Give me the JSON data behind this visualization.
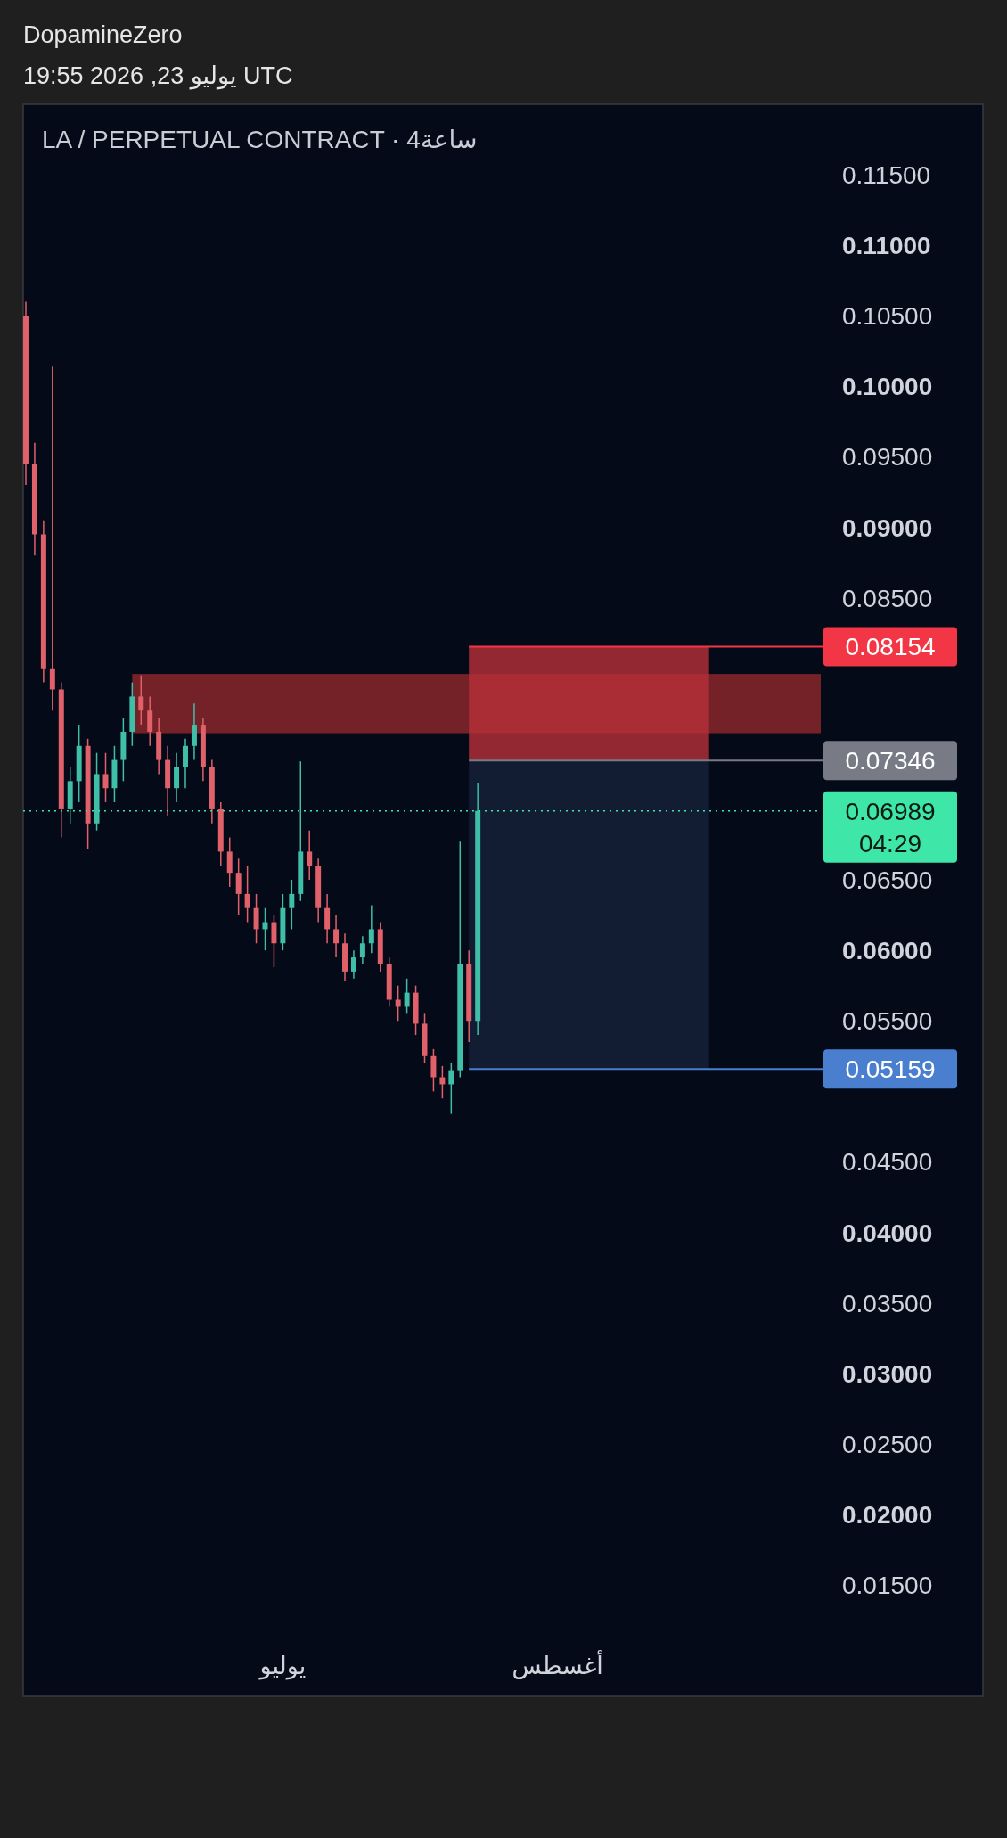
{
  "chart_data": {
    "type": "candlestick",
    "title": "DopamineZero",
    "subtitle": "19:55 2026 ,23 يوليو UTC",
    "annotations": [
      "LA / PERPETUAL CONTRACT · 4ساعة"
    ],
    "categories": [
      null,
      null,
      null,
      null,
      null,
      null,
      null,
      null,
      null,
      null,
      null,
      null,
      null,
      null,
      null,
      null,
      null,
      null,
      null,
      null,
      null,
      null,
      null,
      null,
      null,
      null,
      null,
      null,
      null,
      "يوليو",
      null,
      null,
      null,
      null,
      null,
      null,
      null,
      null,
      null,
      null,
      null,
      null,
      null,
      null,
      null,
      null,
      null,
      null,
      null,
      null,
      null,
      null,
      null,
      null,
      null,
      null,
      null,
      null,
      null,
      null,
      "أغسطس",
      null,
      null,
      null,
      null,
      null,
      null,
      null,
      null,
      null,
      null,
      null,
      null,
      null,
      null,
      null,
      null,
      null,
      null,
      null,
      null,
      null,
      null,
      null,
      null,
      null,
      null,
      null,
      null,
      null
    ],
    "ohlc": [
      [
        0.105,
        0.106,
        0.093,
        0.0945
      ],
      [
        0.0945,
        0.096,
        0.088,
        0.0895
      ],
      [
        0.0895,
        0.0905,
        0.079,
        0.08
      ],
      [
        0.08,
        0.1014,
        0.077,
        0.0785
      ],
      [
        0.0785,
        0.079,
        0.068,
        0.07
      ],
      [
        0.07,
        0.073,
        0.069,
        0.072
      ],
      [
        0.072,
        0.076,
        0.0705,
        0.0745
      ],
      [
        0.0745,
        0.075,
        0.0672,
        0.069
      ],
      [
        0.069,
        0.074,
        0.0685,
        0.0725
      ],
      [
        0.0725,
        0.074,
        0.0705,
        0.0715
      ],
      [
        0.0715,
        0.0745,
        0.0705,
        0.0735
      ],
      [
        0.0735,
        0.0765,
        0.072,
        0.0755
      ],
      [
        0.0755,
        0.079,
        0.0745,
        0.078
      ],
      [
        0.078,
        0.0795,
        0.076,
        0.077
      ],
      [
        0.077,
        0.078,
        0.0745,
        0.0755
      ],
      [
        0.0755,
        0.0765,
        0.0725,
        0.0735
      ],
      [
        0.0735,
        0.0745,
        0.0695,
        0.0715
      ],
      [
        0.0715,
        0.074,
        0.0705,
        0.073
      ],
      [
        0.073,
        0.075,
        0.0715,
        0.0745
      ],
      [
        0.0745,
        0.0775,
        0.0735,
        0.076
      ],
      [
        0.076,
        0.0765,
        0.072,
        0.073
      ],
      [
        0.073,
        0.0735,
        0.069,
        0.07
      ],
      [
        0.07,
        0.0705,
        0.066,
        0.067
      ],
      [
        0.067,
        0.068,
        0.0645,
        0.0655
      ],
      [
        0.0655,
        0.0665,
        0.0625,
        0.064
      ],
      [
        0.064,
        0.066,
        0.062,
        0.063
      ],
      [
        0.063,
        0.064,
        0.0605,
        0.0615
      ],
      [
        0.0615,
        0.063,
        0.06,
        0.062
      ],
      [
        0.062,
        0.0625,
        0.0588,
        0.0605
      ],
      [
        0.0605,
        0.064,
        0.06,
        0.063
      ],
      [
        0.063,
        0.065,
        0.0615,
        0.064
      ],
      [
        0.064,
        0.0734,
        0.0635,
        0.067
      ],
      [
        0.067,
        0.0685,
        0.065,
        0.066
      ],
      [
        0.066,
        0.0665,
        0.062,
        0.063
      ],
      [
        0.063,
        0.064,
        0.0605,
        0.0615
      ],
      [
        0.0615,
        0.0625,
        0.0595,
        0.0605
      ],
      [
        0.0605,
        0.0612,
        0.0578,
        0.0585
      ],
      [
        0.0585,
        0.06,
        0.058,
        0.0595
      ],
      [
        0.0595,
        0.061,
        0.059,
        0.0605
      ],
      [
        0.0605,
        0.0632,
        0.0598,
        0.0615
      ],
      [
        0.0615,
        0.062,
        0.0585,
        0.059
      ],
      [
        0.059,
        0.0595,
        0.056,
        0.0565
      ],
      [
        0.0565,
        0.0575,
        0.055,
        0.056
      ],
      [
        0.056,
        0.058,
        0.0555,
        0.057
      ],
      [
        0.057,
        0.0575,
        0.054,
        0.0548
      ],
      [
        0.0548,
        0.0555,
        0.052,
        0.0525
      ],
      [
        0.0525,
        0.053,
        0.05,
        0.051
      ],
      [
        0.051,
        0.0518,
        0.0495,
        0.0505
      ],
      [
        0.0505,
        0.052,
        0.0484,
        0.0515
      ],
      [
        0.0515,
        0.0677,
        0.051,
        0.059
      ],
      [
        0.059,
        0.06,
        0.0535,
        0.055
      ],
      [
        0.055,
        0.0719,
        0.054,
        0.06989
      ],
      null,
      null,
      null,
      null,
      null,
      null,
      null,
      null,
      null,
      null,
      null,
      null,
      null,
      null,
      null,
      null,
      null,
      null,
      null,
      null,
      null,
      null,
      null,
      null,
      null,
      null,
      null,
      null,
      null,
      null,
      null,
      null,
      null,
      null,
      null,
      null,
      null,
      null
    ],
    "ylim": [
      0.0071,
      0.12
    ],
    "yticks": [
      {
        "value": 0.015,
        "label": "0.01500"
      },
      {
        "value": 0.02,
        "label": "0.02000"
      },
      {
        "value": 0.025,
        "label": "0.02500"
      },
      {
        "value": 0.03,
        "label": "0.03000"
      },
      {
        "value": 0.035,
        "label": "0.03500"
      },
      {
        "value": 0.04,
        "label": "0.04000"
      },
      {
        "value": 0.045,
        "label": "0.04500"
      },
      {
        "value": 0.055,
        "label": "0.05500"
      },
      {
        "value": 0.06,
        "label": "0.06000"
      },
      {
        "value": 0.065,
        "label": "0.06500"
      },
      {
        "value": 0.085,
        "label": "0.08500"
      },
      {
        "value": 0.09,
        "label": "0.09000"
      },
      {
        "value": 0.095,
        "label": "0.09500"
      },
      {
        "value": 0.1,
        "label": "0.10000"
      },
      {
        "value": 0.105,
        "label": "0.10500"
      },
      {
        "value": 0.11,
        "label": "0.11000"
      },
      {
        "value": 0.115,
        "label": "0.11500"
      }
    ],
    "bands": [
      {
        "axis": "y",
        "from": 0.0754,
        "to": 0.0796,
        "color": "#7a2328"
      },
      {
        "axis": "y",
        "from": 0.07346,
        "to": 0.08154,
        "color": "#b8303a"
      },
      {
        "axis": "y",
        "from": 0.05159,
        "to": 0.07346,
        "color": "#15213b"
      }
    ],
    "ref_lines": [
      {
        "axis": "y",
        "value": 0.08154,
        "label": "0.08154",
        "color": "#f23645",
        "line_style": "solid"
      },
      {
        "axis": "y",
        "value": 0.07346,
        "label": "0.07346",
        "color": "#787b86",
        "line_style": "solid"
      },
      {
        "axis": "y",
        "value": 0.06989,
        "label": "0.06989\n04:29",
        "color": "#3ee6a8",
        "line_style": "dotted"
      },
      {
        "axis": "y",
        "value": 0.05159,
        "label": "0.05159",
        "color": "#4a7fd0",
        "line_style": "solid"
      }
    ]
  }
}
